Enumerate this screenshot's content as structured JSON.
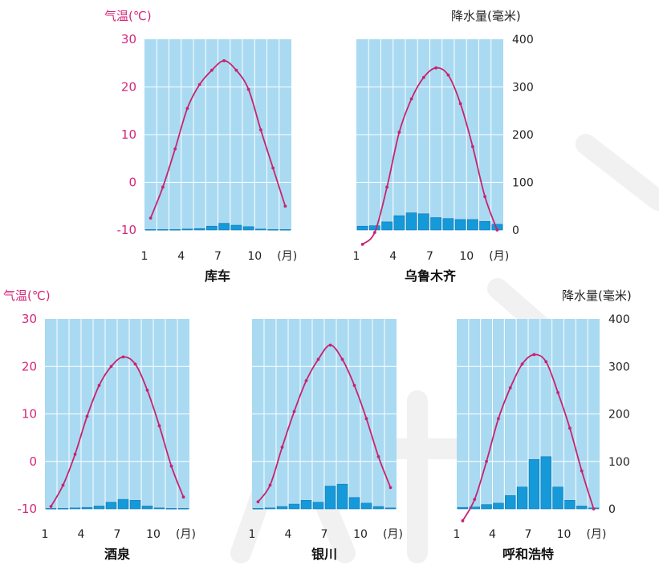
{
  "colors": {
    "panel": "#a9daf2",
    "grid": "#ffffff",
    "bar": "#1599d9",
    "bar_edge": "#0b77b4",
    "temp_line": "#c8236e",
    "temp_label": "#d6257a",
    "text": "#222222"
  },
  "axis_labels": {
    "temperature": "气温(℃)",
    "precipitation": "降水量(毫米)",
    "month_unit": "(月)"
  },
  "chart_data": [
    {
      "type": "bar",
      "title": "库车",
      "x": [
        1,
        2,
        3,
        4,
        5,
        6,
        7,
        8,
        9,
        10,
        11,
        12
      ],
      "x_ticks": [
        "1",
        "4",
        "7",
        "10"
      ],
      "x_unit": "(月)",
      "temp_axis": {
        "label": "气温(℃)",
        "ticks": [
          "30",
          "20",
          "10",
          "0",
          "-10"
        ],
        "range": [
          -10,
          30
        ]
      },
      "precip_axis": {
        "label": "",
        "ticks": [],
        "range": [
          0,
          400
        ]
      },
      "series": [
        {
          "name": "",
          "kind": "line",
          "axis": "temperature",
          "values": [
            -7.5,
            -1,
            7,
            15.5,
            20.5,
            23.5,
            25.5,
            23.5,
            19.5,
            11,
            3,
            -5
          ]
        },
        {
          "name": "",
          "kind": "bar",
          "axis": "precipitation",
          "values": [
            1,
            1,
            1,
            2,
            3,
            8,
            14,
            10,
            7,
            2,
            1,
            1
          ]
        }
      ]
    },
    {
      "type": "bar",
      "title": "乌鲁木齐",
      "x": [
        1,
        2,
        3,
        4,
        5,
        6,
        7,
        8,
        9,
        10,
        11,
        12
      ],
      "x_ticks": [
        "1",
        "4",
        "7",
        "10"
      ],
      "x_unit": "(月)",
      "temp_axis": {
        "label": "",
        "ticks": [],
        "range": [
          -10,
          30
        ]
      },
      "precip_axis": {
        "label": "降水量(毫米)",
        "ticks": [
          "400",
          "300",
          "200",
          "100",
          "0"
        ],
        "range": [
          0,
          400
        ]
      },
      "series": [
        {
          "name": "",
          "kind": "line",
          "axis": "temperature",
          "values": [
            -13,
            -10.5,
            -1,
            10.5,
            17.5,
            22,
            24,
            22.5,
            16.5,
            7.5,
            -3,
            -10
          ]
        },
        {
          "name": "",
          "kind": "bar",
          "axis": "precipitation",
          "values": [
            8,
            9,
            17,
            30,
            36,
            34,
            26,
            24,
            22,
            22,
            18,
            12
          ]
        }
      ]
    },
    {
      "type": "bar",
      "title": "酒泉",
      "x": [
        1,
        2,
        3,
        4,
        5,
        6,
        7,
        8,
        9,
        10,
        11,
        12
      ],
      "x_ticks": [
        "1",
        "4",
        "7",
        "10"
      ],
      "x_unit": "(月)",
      "temp_axis": {
        "label": "气温(℃)",
        "ticks": [
          "30",
          "20",
          "10",
          "0",
          "-10"
        ],
        "range": [
          -10,
          30
        ]
      },
      "precip_axis": {
        "label": "",
        "ticks": [],
        "range": [
          0,
          400
        ]
      },
      "series": [
        {
          "name": "",
          "kind": "line",
          "axis": "temperature",
          "values": [
            -9.5,
            -5,
            1.5,
            9.5,
            16,
            20,
            22,
            20.5,
            15,
            7.5,
            -1,
            -7.5
          ]
        },
        {
          "name": "",
          "kind": "bar",
          "axis": "precipitation",
          "values": [
            1,
            1,
            2,
            3,
            6,
            14,
            20,
            18,
            6,
            2,
            1,
            1
          ]
        }
      ]
    },
    {
      "type": "bar",
      "title": "银川",
      "x": [
        1,
        2,
        3,
        4,
        5,
        6,
        7,
        8,
        9,
        10,
        11,
        12
      ],
      "x_ticks": [
        "1",
        "4",
        "7",
        "10"
      ],
      "x_unit": "(月)",
      "temp_axis": {
        "label": "",
        "ticks": [],
        "range": [
          -10,
          30
        ]
      },
      "precip_axis": {
        "label": "",
        "ticks": [],
        "range": [
          0,
          400
        ]
      },
      "series": [
        {
          "name": "",
          "kind": "line",
          "axis": "temperature",
          "values": [
            -8.5,
            -5,
            3,
            10.5,
            17,
            21.5,
            24.5,
            21.5,
            16,
            9,
            1,
            -5.5
          ]
        },
        {
          "name": "",
          "kind": "bar",
          "axis": "precipitation",
          "values": [
            1,
            2,
            5,
            10,
            18,
            14,
            48,
            52,
            24,
            12,
            5,
            2
          ]
        }
      ]
    },
    {
      "type": "bar",
      "title": "呼和浩特",
      "x": [
        1,
        2,
        3,
        4,
        5,
        6,
        7,
        8,
        9,
        10,
        11,
        12
      ],
      "x_ticks": [
        "1",
        "4",
        "7",
        "10"
      ],
      "x_unit": "(月)",
      "temp_axis": {
        "label": "",
        "ticks": [],
        "range": [
          -10,
          30
        ]
      },
      "precip_axis": {
        "label": "降水量(毫米)",
        "ticks": [
          "400",
          "300",
          "200",
          "100",
          "0"
        ],
        "range": [
          0,
          400
        ]
      },
      "series": [
        {
          "name": "",
          "kind": "line",
          "axis": "temperature",
          "values": [
            -12.5,
            -8,
            0,
            9,
            15.5,
            20.5,
            22.5,
            21,
            14.5,
            7,
            -2,
            -10
          ]
        },
        {
          "name": "",
          "kind": "bar",
          "axis": "precipitation",
          "values": [
            3,
            4,
            9,
            12,
            28,
            46,
            104,
            110,
            46,
            18,
            6,
            2
          ]
        }
      ]
    }
  ]
}
